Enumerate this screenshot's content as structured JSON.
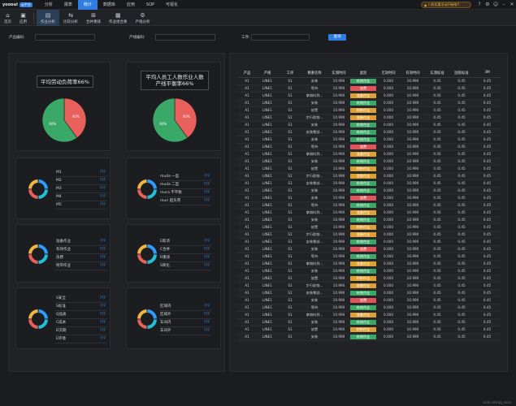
{
  "topbar": {
    "brand": "yoooui",
    "badge": "云平台",
    "menu": [
      "分析",
      "报表",
      "统计",
      "数据库",
      "应用",
      "SOP",
      "可视化"
    ],
    "active_menu": 2,
    "alert": "八折优惠活动开始啦!!",
    "icons": [
      "help-icon",
      "settings-icon",
      "user-icon",
      "minimize-icon",
      "close-icon"
    ]
  },
  "toolbar": {
    "items": [
      {
        "label": "首页",
        "icon": "home-icon",
        "glyph": "⌂"
      },
      {
        "label": "应用",
        "icon": "app-icon",
        "glyph": "▣"
      },
      {
        "label": "作业分析",
        "icon": "job-analysis-icon",
        "glyph": "▤",
        "active": true
      },
      {
        "label": "比较分析",
        "icon": "compare-icon",
        "glyph": "⇆"
      },
      {
        "label": "合并重排",
        "icon": "merge-icon",
        "glyph": "⊞"
      },
      {
        "label": "作业组合要",
        "icon": "job-combo-icon",
        "glyph": "▦"
      },
      {
        "label": "产线分析",
        "icon": "line-analysis-icon",
        "glyph": "⚙"
      }
    ]
  },
  "filter": {
    "product_label": "产品编码:",
    "line_label": "产线编码:",
    "process_label": "工序:",
    "product_value": "",
    "line_value": "",
    "process_value": "",
    "query_label": "查询"
  },
  "pies": [
    {
      "title": "平均劳动负荷率66%",
      "red_label": "40%",
      "green_label": "60%",
      "red": 40,
      "green": 60
    },
    {
      "title": "平均人员工人数作业人数产线平衡率66%",
      "red_label": "40%",
      "green_label": "60%",
      "red": 40,
      "green": 60
    }
  ],
  "legends": [
    {
      "items": [
        {
          "name": "M1",
          "value": "???"
        },
        {
          "name": "M2",
          "value": "???"
        },
        {
          "name": "M3",
          "value": "???"
        },
        {
          "name": "M4",
          "value": "???"
        },
        {
          "name": "M5",
          "value": "???"
        }
      ]
    },
    {
      "items": [
        {
          "name": "muda 一型",
          "value": "???"
        },
        {
          "name": "muda 二型",
          "value": "???"
        },
        {
          "name": "mura 不平衡",
          "value": "???"
        },
        {
          "name": "muri 超负荷",
          "value": "???"
        }
      ]
    },
    {
      "items": [
        {
          "name": "准备作业",
          "value": "???"
        },
        {
          "name": "有效作业",
          "value": "???"
        },
        {
          "name": "浪费",
          "value": "???"
        },
        {
          "name": "附带作业",
          "value": "???"
        }
      ]
    },
    {
      "items": [
        {
          "name": "E取消",
          "value": "???"
        },
        {
          "name": "C合并",
          "value": "???"
        },
        {
          "name": "R重排",
          "value": "???"
        },
        {
          "name": "S简化",
          "value": "???"
        }
      ]
    },
    {
      "items": [
        {
          "name": "S安全",
          "value": "???"
        },
        {
          "name": "S标准",
          "value": "???"
        },
        {
          "name": "Q品质",
          "value": "???"
        },
        {
          "name": "C成本",
          "value": "???"
        },
        {
          "name": "D交期",
          "value": "???"
        },
        {
          "name": "E环境",
          "value": "???"
        }
      ]
    },
    {
      "items": [
        {
          "name": "区域内",
          "value": "???"
        },
        {
          "name": "区域外",
          "value": "???"
        },
        {
          "name": "车间内",
          "value": "???"
        },
        {
          "name": "车间外",
          "value": "???"
        }
      ]
    }
  ],
  "colors": {
    "accent": "#2f7de1",
    "pie_red": "#e8605c",
    "pie_green": "#3aa866",
    "cat_green": "#3aa866",
    "cat_orange": "#e0a030",
    "cat_red": "#e0555a",
    "donut": [
      "#2f9bff",
      "#21c0d8",
      "#e8605c",
      "#f2b640",
      "#6b7cff"
    ]
  },
  "table": {
    "headers": [
      "产品",
      "产线",
      "工序",
      "要素名称",
      "实测时间",
      "类别",
      "无效时间",
      "有效时间",
      "实测标准",
      "国际标准",
      "3M"
    ],
    "rows": [
      [
        "A1",
        "LINE1",
        "S1",
        "安装",
        "10.990",
        "有效作业",
        "0.000",
        "10.990",
        "0.45",
        "0.45",
        "0.45"
      ],
      [
        "A1",
        "LINE1",
        "S1",
        "等待",
        "10.990",
        "浪费",
        "0.000",
        "10.990",
        "0.45",
        "0.45",
        "0.45"
      ],
      [
        "A1",
        "LINE1",
        "S1",
        "拿物料到...",
        "10.990",
        "准备作业",
        "0.000",
        "10.990",
        "0.45",
        "0.45",
        "0.45"
      ],
      [
        "A1",
        "LINE1",
        "S1",
        "安装",
        "10.990",
        "有效作业",
        "0.000",
        "10.990",
        "0.45",
        "0.45",
        "0.45"
      ],
      [
        "A1",
        "LINE1",
        "S1",
        "放置",
        "10.990",
        "附带作业",
        "0.000",
        "10.990",
        "0.45",
        "0.45",
        "0.45"
      ],
      [
        "A1",
        "LINE1",
        "S1",
        "步行取物...",
        "10.990",
        "准备作业",
        "0.000",
        "10.990",
        "0.45",
        "0.45",
        "0.45"
      ],
      [
        "A1",
        "LINE1",
        "S1",
        "安装",
        "10.990",
        "有效作业",
        "0.000",
        "10.990",
        "0.45",
        "0.45",
        "0.45"
      ],
      [
        "A1",
        "LINE1",
        "S1",
        "安装零部...",
        "10.990",
        "有效作业",
        "0.000",
        "10.990",
        "0.45",
        "0.45",
        "0.45"
      ],
      [
        "A1",
        "LINE1",
        "S1",
        "安装",
        "10.990",
        "有效作业",
        "0.000",
        "10.990",
        "0.45",
        "0.45",
        "0.45"
      ],
      [
        "A1",
        "LINE1",
        "S1",
        "等待",
        "10.990",
        "浪费",
        "0.000",
        "10.990",
        "0.45",
        "0.45",
        "0.45"
      ],
      [
        "A1",
        "LINE1",
        "S1",
        "拿物料到...",
        "10.990",
        "准备作业",
        "0.000",
        "10.990",
        "0.45",
        "0.45",
        "0.45"
      ],
      [
        "A1",
        "LINE1",
        "S1",
        "安装",
        "10.990",
        "有效作业",
        "0.000",
        "10.990",
        "0.45",
        "0.45",
        "0.45"
      ],
      [
        "A1",
        "LINE1",
        "S1",
        "放置",
        "10.990",
        "附带作业",
        "0.000",
        "10.990",
        "0.45",
        "0.45",
        "0.45"
      ],
      [
        "A1",
        "LINE1",
        "S1",
        "步行取物...",
        "10.990",
        "准备作业",
        "0.000",
        "10.990",
        "0.45",
        "0.45",
        "0.45"
      ],
      [
        "A1",
        "LINE1",
        "S1",
        "安装零部...",
        "10.990",
        "有效作业",
        "0.000",
        "10.990",
        "0.45",
        "0.45",
        "0.45"
      ],
      [
        "A1",
        "LINE1",
        "S1",
        "安装",
        "10.990",
        "有效作业",
        "0.000",
        "10.990",
        "0.45",
        "0.45",
        "0.45"
      ],
      [
        "A1",
        "LINE1",
        "S1",
        "安装",
        "10.990",
        "浪费",
        "0.000",
        "10.990",
        "0.45",
        "0.45",
        "0.45"
      ],
      [
        "A1",
        "LINE1",
        "S1",
        "等待",
        "10.990",
        "有效作业",
        "0.000",
        "10.990",
        "0.45",
        "0.45",
        "0.45"
      ],
      [
        "A1",
        "LINE1",
        "S1",
        "拿物料到...",
        "10.990",
        "准备作业",
        "0.000",
        "10.990",
        "0.45",
        "0.45",
        "0.45"
      ],
      [
        "A1",
        "LINE1",
        "S1",
        "安装",
        "10.990",
        "有效作业",
        "0.000",
        "10.990",
        "0.45",
        "0.45",
        "0.45"
      ],
      [
        "A1",
        "LINE1",
        "S1",
        "放置",
        "10.990",
        "附带作业",
        "0.000",
        "10.990",
        "0.45",
        "0.45",
        "0.45"
      ],
      [
        "A1",
        "LINE1",
        "S1",
        "步行取物...",
        "10.990",
        "准备作业",
        "0.000",
        "10.990",
        "0.45",
        "0.45",
        "0.45"
      ],
      [
        "A1",
        "LINE1",
        "S1",
        "安装零部...",
        "10.990",
        "有效作业",
        "0.000",
        "10.990",
        "0.45",
        "0.45",
        "0.45"
      ],
      [
        "A1",
        "LINE1",
        "S1",
        "安装",
        "10.990",
        "浪费",
        "0.000",
        "10.990",
        "0.45",
        "0.45",
        "0.45"
      ],
      [
        "A1",
        "LINE1",
        "S1",
        "等待",
        "10.990",
        "有效作业",
        "0.000",
        "10.990",
        "0.45",
        "0.45",
        "0.45"
      ],
      [
        "A1",
        "LINE1",
        "S1",
        "拿物料到...",
        "10.990",
        "准备作业",
        "0.000",
        "10.990",
        "0.45",
        "0.45",
        "0.45"
      ],
      [
        "A1",
        "LINE1",
        "S1",
        "安装",
        "10.990",
        "有效作业",
        "0.000",
        "10.990",
        "0.45",
        "0.45",
        "0.45"
      ],
      [
        "A1",
        "LINE1",
        "S1",
        "放置",
        "10.990",
        "附带作业",
        "0.000",
        "10.990",
        "0.45",
        "0.45",
        "0.45"
      ],
      [
        "A1",
        "LINE1",
        "S1",
        "步行取物...",
        "10.990",
        "准备作业",
        "0.000",
        "10.990",
        "0.45",
        "0.45",
        "0.45"
      ],
      [
        "A1",
        "LINE1",
        "S1",
        "安装零部...",
        "10.990",
        "有效作业",
        "0.000",
        "10.990",
        "0.45",
        "0.45",
        "0.45"
      ],
      [
        "A1",
        "LINE1",
        "S1",
        "安装",
        "10.990",
        "浪费",
        "0.000",
        "10.990",
        "0.45",
        "0.45",
        "0.45"
      ],
      [
        "A1",
        "LINE1",
        "S1",
        "等待",
        "10.990",
        "有效作业",
        "0.000",
        "10.990",
        "0.45",
        "0.45",
        "0.45"
      ],
      [
        "A1",
        "LINE1",
        "S1",
        "拿物料到...",
        "10.990",
        "准备作业",
        "0.000",
        "10.990",
        "0.45",
        "0.45",
        "0.45"
      ],
      [
        "A1",
        "LINE1",
        "S1",
        "安装",
        "10.990",
        "有效作业",
        "0.000",
        "10.990",
        "0.45",
        "0.45",
        "0.45"
      ],
      [
        "A1",
        "LINE1",
        "S1",
        "放置",
        "10.990",
        "附带作业",
        "0.000",
        "10.990",
        "0.45",
        "0.45",
        "0.45"
      ],
      [
        "A1",
        "LINE1",
        "S1",
        "安装",
        "10.990",
        "有效作业",
        "0.000",
        "10.990",
        "0.45",
        "0.45",
        "0.45"
      ]
    ]
  },
  "footer": "csdn.net/qq_xxxx"
}
